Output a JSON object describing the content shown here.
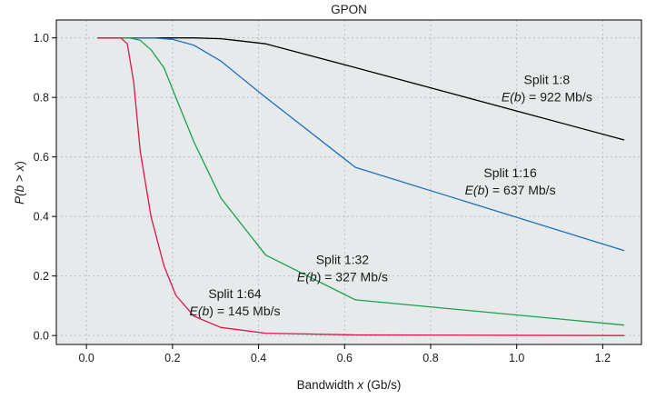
{
  "chart_data": {
    "type": "line",
    "title": "GPON",
    "xlabel": {
      "pre": "Bandwidth ",
      "var": "x",
      "post": " (Gb/s)"
    },
    "ylabel": {
      "p1": "P(",
      "v1": "b",
      "mid": " > ",
      "v2": "x",
      "p2": ")"
    },
    "xlim": [
      -0.07,
      1.29
    ],
    "ylim": [
      -0.03,
      1.06
    ],
    "xticks": [
      0.0,
      0.2,
      0.4,
      0.6,
      0.8,
      1.0,
      1.2
    ],
    "xtick_labels": [
      "0.0",
      "0.2",
      "0.4",
      "0.6",
      "0.8",
      "1.0",
      "1.2"
    ],
    "yticks": [
      0.0,
      0.2,
      0.4,
      0.6,
      0.8,
      1.0
    ],
    "ytick_labels": [
      "0.0",
      "0.2",
      "0.4",
      "0.6",
      "0.8",
      "1.0"
    ],
    "grid": true,
    "plot_background": "#e6eaea",
    "series": [
      {
        "color": "#000000",
        "x": [
          0.025,
          0.1,
          0.2,
          0.25,
          0.3125,
          0.4167,
          0.625,
          1.25
        ],
        "y": [
          1.0,
          1.0,
          1.0,
          1.0,
          0.997,
          0.98,
          0.9,
          0.657
        ]
      },
      {
        "color": "#1f6fbf",
        "x": [
          0.025,
          0.1,
          0.156,
          0.2,
          0.25,
          0.3125,
          0.4167,
          0.625,
          1.25
        ],
        "y": [
          1.0,
          1.0,
          1.0,
          0.995,
          0.975,
          0.922,
          0.8,
          0.565,
          0.285
        ]
      },
      {
        "color": "#1aa050",
        "x": [
          0.025,
          0.1,
          0.125,
          0.15,
          0.18,
          0.208,
          0.25,
          0.3125,
          0.4167,
          0.625,
          1.25
        ],
        "y": [
          1.0,
          1.0,
          0.992,
          0.96,
          0.9,
          0.8,
          0.65,
          0.462,
          0.27,
          0.12,
          0.035
        ]
      },
      {
        "color": "#e0144c",
        "x": [
          0.025,
          0.08,
          0.095,
          0.11,
          0.125,
          0.15,
          0.18,
          0.208,
          0.25,
          0.3125,
          0.4167,
          0.625,
          1.25
        ],
        "y": [
          1.0,
          1.0,
          0.98,
          0.85,
          0.62,
          0.4,
          0.235,
          0.135,
          0.065,
          0.027,
          0.008,
          0.002,
          0.0
        ]
      }
    ],
    "annotations": [
      {
        "lines": [
          {
            "text": "Split 1:8"
          },
          {
            "pre": "E(",
            "var": "b",
            "post": ") = 922 Mb/s"
          }
        ],
        "x": 1.07,
        "y": 0.845
      },
      {
        "lines": [
          {
            "text": "Split 1:16"
          },
          {
            "pre": "E(",
            "var": "b",
            "post": ") = 637 Mb/s"
          }
        ],
        "x": 0.985,
        "y": 0.5325
      },
      {
        "lines": [
          {
            "text": "Split 1:32"
          },
          {
            "pre": "E(",
            "var": "b",
            "post": ") = 327 Mb/s"
          }
        ],
        "x": 0.595,
        "y": 0.24
      },
      {
        "lines": [
          {
            "text": "Split 1:64"
          },
          {
            "pre": "E(",
            "var": "b",
            "post": ") = 145 Mb/s"
          }
        ],
        "x": 0.345,
        "y": 0.125
      }
    ]
  }
}
